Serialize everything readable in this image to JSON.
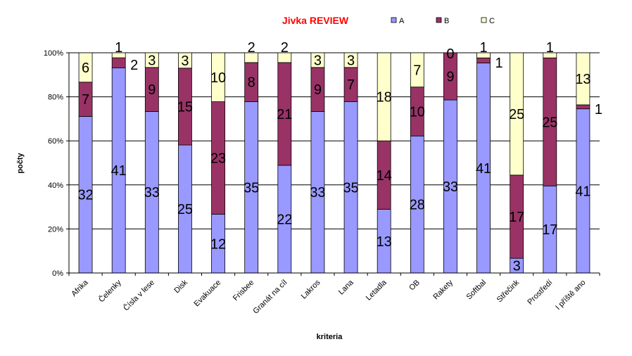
{
  "chart_data": {
    "type": "bar",
    "stacked": true,
    "normalized": true,
    "title": "Jivka REVIEW",
    "xlabel": "kriteria",
    "ylabel": "počty",
    "ylim": [
      0,
      100
    ],
    "y_ticks": [
      "0%",
      "20%",
      "40%",
      "60%",
      "80%",
      "100%"
    ],
    "grid": true,
    "legend_position": "top",
    "categories": [
      "Afrika",
      "Čelenky",
      "Čísla v lese",
      "Disk",
      "Evakuace",
      "Frisbee",
      "Granát na cíl",
      "Lakros",
      "Lana",
      "Letadla",
      "OB",
      "Rakety",
      "Softbal",
      "Střečink",
      "Prostředí",
      "I příště ano"
    ],
    "series": [
      {
        "name": "A",
        "color": "#9999ff",
        "values": [
          32,
          41,
          33,
          25,
          12,
          35,
          22,
          33,
          35,
          13,
          28,
          33,
          41,
          3,
          17,
          41
        ]
      },
      {
        "name": "B",
        "color": "#993366",
        "values": [
          7,
          2,
          9,
          15,
          23,
          8,
          21,
          9,
          7,
          14,
          10,
          9,
          1,
          17,
          25,
          1
        ]
      },
      {
        "name": "C",
        "color": "#ffffcc",
        "values": [
          6,
          1,
          3,
          3,
          10,
          2,
          2,
          3,
          3,
          18,
          7,
          0,
          1,
          25,
          1,
          13
        ]
      }
    ],
    "title_color": "#ff0000"
  }
}
